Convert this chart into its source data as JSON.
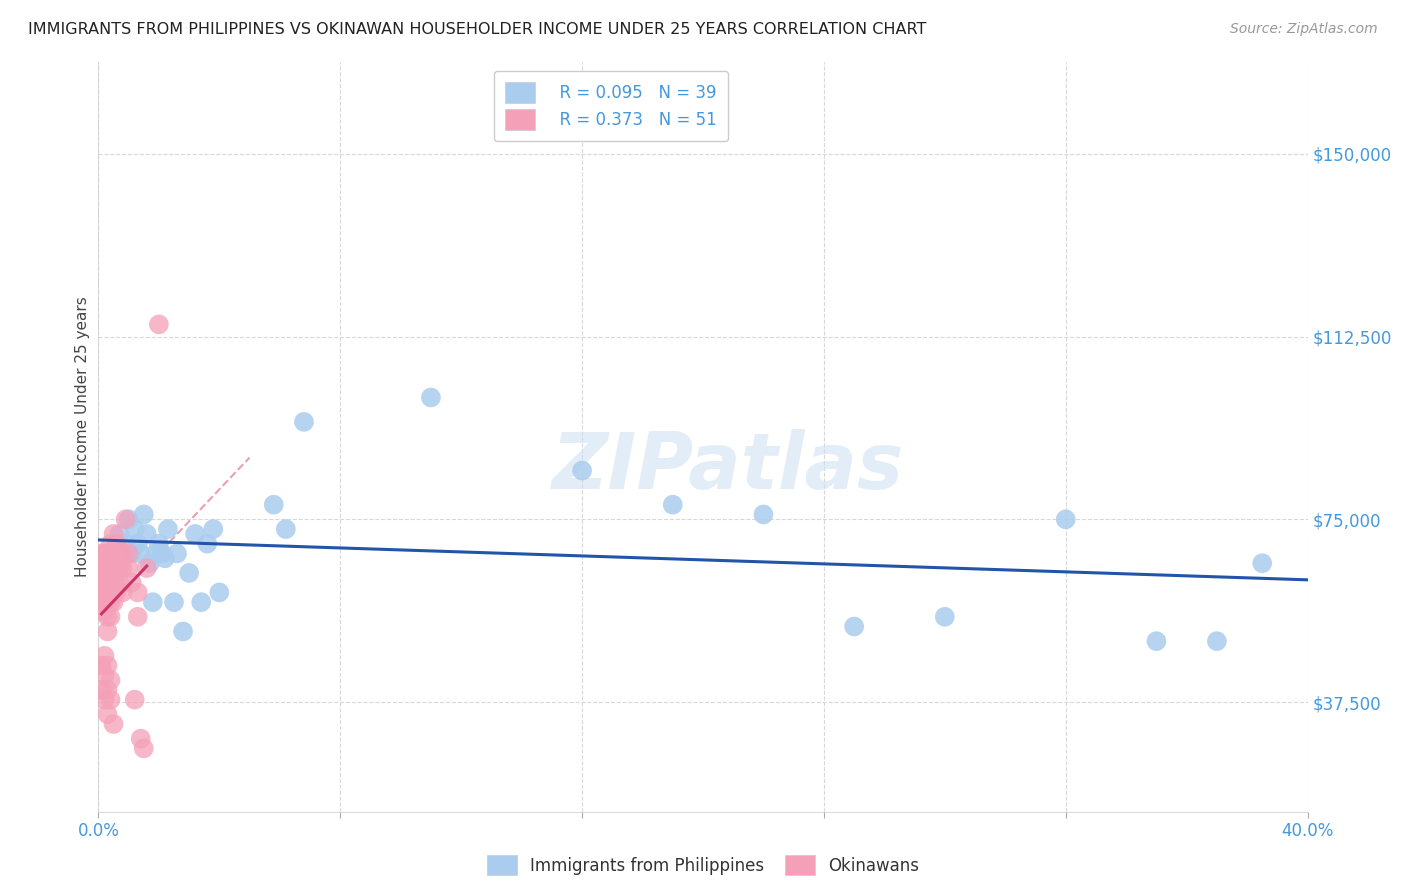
{
  "title": "IMMIGRANTS FROM PHILIPPINES VS OKINAWAN HOUSEHOLDER INCOME UNDER 25 YEARS CORRELATION CHART",
  "source": "Source: ZipAtlas.com",
  "ylabel": "Householder Income Under 25 years",
  "xlim": [
    0.0,
    0.4
  ],
  "ylim": [
    15000,
    168750
  ],
  "xticks": [
    0.0,
    0.08,
    0.16,
    0.24,
    0.32,
    0.4
  ],
  "ytick_positions": [
    37500,
    75000,
    112500,
    150000
  ],
  "ytick_labels": [
    "$37,500",
    "$75,000",
    "$112,500",
    "$150,000"
  ],
  "grid_color": "#d8d8d8",
  "background_color": "#ffffff",
  "watermark": "ZIPatlas",
  "blue_line_color": "#2255aa",
  "pink_line_color": "#cc3366",
  "pink_dash_color": "#e8a0b0",
  "blue_scatter_color": "#aaccee",
  "pink_scatter_color": "#f4a0b8",
  "legend_label1": "R = 0.095   N = 39",
  "legend_label2": "R = 0.373   N = 51",
  "legend_R1": "0.095",
  "legend_N1": "39",
  "legend_R2": "0.373",
  "legend_N2": "51",
  "right_tick_color": "#4499dd",
  "blue_points_x": [
    0.005,
    0.007,
    0.009,
    0.01,
    0.011,
    0.012,
    0.013,
    0.014,
    0.015,
    0.016,
    0.017,
    0.018,
    0.019,
    0.02,
    0.021,
    0.022,
    0.023,
    0.025,
    0.026,
    0.028,
    0.03,
    0.032,
    0.034,
    0.036,
    0.038,
    0.04,
    0.058,
    0.062,
    0.068,
    0.11,
    0.16,
    0.19,
    0.22,
    0.25,
    0.28,
    0.32,
    0.35,
    0.37,
    0.385
  ],
  "blue_points_y": [
    68000,
    72000,
    70000,
    75000,
    68000,
    73000,
    70000,
    68000,
    76000,
    72000,
    66000,
    58000,
    68000,
    70000,
    68000,
    67000,
    73000,
    58000,
    68000,
    52000,
    64000,
    72000,
    58000,
    70000,
    73000,
    60000,
    78000,
    73000,
    95000,
    100000,
    85000,
    78000,
    76000,
    53000,
    55000,
    75000,
    50000,
    50000,
    66000
  ],
  "pink_points_x": [
    0.001,
    0.001,
    0.001,
    0.001,
    0.002,
    0.002,
    0.002,
    0.002,
    0.002,
    0.002,
    0.002,
    0.003,
    0.003,
    0.003,
    0.003,
    0.003,
    0.003,
    0.003,
    0.004,
    0.004,
    0.004,
    0.004,
    0.004,
    0.004,
    0.004,
    0.005,
    0.005,
    0.005,
    0.005,
    0.005,
    0.006,
    0.006,
    0.006,
    0.006,
    0.007,
    0.007,
    0.007,
    0.008,
    0.008,
    0.008,
    0.009,
    0.01,
    0.01,
    0.011,
    0.012,
    0.013,
    0.013,
    0.014,
    0.015,
    0.016,
    0.02
  ],
  "pink_points_y": [
    68000,
    65000,
    62000,
    58000,
    68000,
    66000,
    64000,
    62000,
    60000,
    58000,
    56000,
    68000,
    65000,
    63000,
    60000,
    58000,
    55000,
    52000,
    70000,
    67000,
    64000,
    62000,
    60000,
    58000,
    55000,
    72000,
    68000,
    65000,
    62000,
    58000,
    70000,
    67000,
    64000,
    60000,
    68000,
    65000,
    62000,
    68000,
    65000,
    60000,
    75000,
    68000,
    65000,
    62000,
    38000,
    60000,
    55000,
    30000,
    28000,
    65000,
    115000
  ],
  "pink_extra_low_x": [
    0.001,
    0.001,
    0.002,
    0.002,
    0.002,
    0.003,
    0.003,
    0.003,
    0.004,
    0.004,
    0.005
  ],
  "pink_extra_low_y": [
    45000,
    40000,
    47000,
    43000,
    38000,
    45000,
    40000,
    35000,
    42000,
    38000,
    33000
  ]
}
